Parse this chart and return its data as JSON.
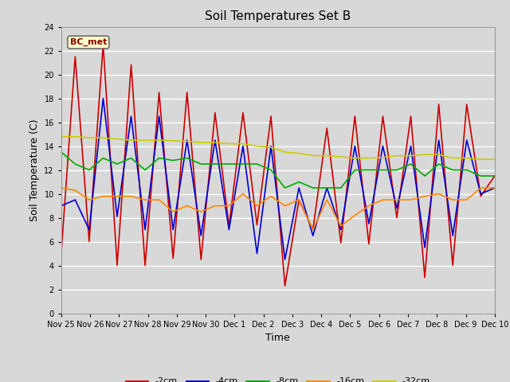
{
  "title": "Soil Temperatures Set B",
  "xlabel": "Time",
  "ylabel": "Soil Temperature (C)",
  "ylim": [
    0,
    24
  ],
  "yticks": [
    0,
    2,
    4,
    6,
    8,
    10,
    12,
    14,
    16,
    18,
    20,
    22,
    24
  ],
  "annotation": "BC_met",
  "series": {
    "-2cm": {
      "color": "#cc0000",
      "linewidth": 1.2
    },
    "-4cm": {
      "color": "#0000cc",
      "linewidth": 1.2
    },
    "-8cm": {
      "color": "#00aa00",
      "linewidth": 1.2
    },
    "-16cm": {
      "color": "#ff8800",
      "linewidth": 1.2
    },
    "-32cm": {
      "color": "#cccc00",
      "linewidth": 1.2
    }
  },
  "xtick_labels": [
    "Nov 25",
    "Nov 26",
    "Nov 27",
    "Nov 28",
    "Nov 29",
    "Nov 30",
    "Dec 1",
    "Dec 2",
    "Dec 3",
    "Dec 4",
    "Dec 5",
    "Dec 6",
    "Dec 7",
    "Dec 8",
    "Dec 9",
    "Dec 10"
  ],
  "data_2cm": [
    5.0,
    21.5,
    6.0,
    22.5,
    4.0,
    20.8,
    4.0,
    18.5,
    4.6,
    18.5,
    4.5,
    16.8,
    7.3,
    16.8,
    7.4,
    16.5,
    2.3,
    9.5,
    7.0,
    15.5,
    5.9,
    16.5,
    5.8,
    16.5,
    8.0,
    16.5,
    3.0,
    17.5,
    4.0,
    17.5,
    9.8,
    11.5
  ],
  "data_4cm": [
    9.0,
    9.5,
    7.0,
    18.0,
    8.1,
    16.5,
    7.0,
    16.5,
    7.0,
    14.5,
    6.5,
    14.5,
    7.0,
    14.0,
    5.0,
    14.0,
    4.5,
    10.5,
    6.5,
    10.5,
    7.0,
    14.0,
    7.5,
    14.0,
    8.8,
    14.0,
    5.5,
    14.5,
    6.5,
    14.5,
    10.0,
    10.5
  ],
  "data_8cm": [
    13.5,
    12.5,
    12.0,
    13.0,
    12.5,
    13.0,
    12.0,
    13.0,
    12.8,
    13.0,
    12.5,
    12.5,
    12.5,
    12.5,
    12.5,
    12.0,
    10.5,
    11.0,
    10.5,
    10.5,
    10.5,
    12.0,
    12.0,
    12.0,
    12.0,
    12.5,
    11.5,
    12.5,
    12.0,
    12.0,
    11.5,
    11.5
  ],
  "data_16cm": [
    10.5,
    10.3,
    9.5,
    9.8,
    9.8,
    9.8,
    9.5,
    9.5,
    8.5,
    9.0,
    8.5,
    9.0,
    9.0,
    10.0,
    9.0,
    9.8,
    9.0,
    9.5,
    7.0,
    9.5,
    7.3,
    8.2,
    9.0,
    9.5,
    9.5,
    9.5,
    9.8,
    10.0,
    9.5,
    9.5,
    10.5,
    10.5
  ],
  "data_32cm": [
    14.8,
    14.8,
    14.7,
    14.7,
    14.6,
    14.5,
    14.5,
    14.5,
    14.45,
    14.4,
    14.3,
    14.3,
    14.2,
    14.2,
    14.0,
    13.9,
    13.5,
    13.4,
    13.2,
    13.2,
    13.1,
    13.0,
    13.0,
    13.05,
    13.2,
    13.2,
    13.3,
    13.3,
    13.0,
    13.0,
    12.9,
    12.9
  ]
}
